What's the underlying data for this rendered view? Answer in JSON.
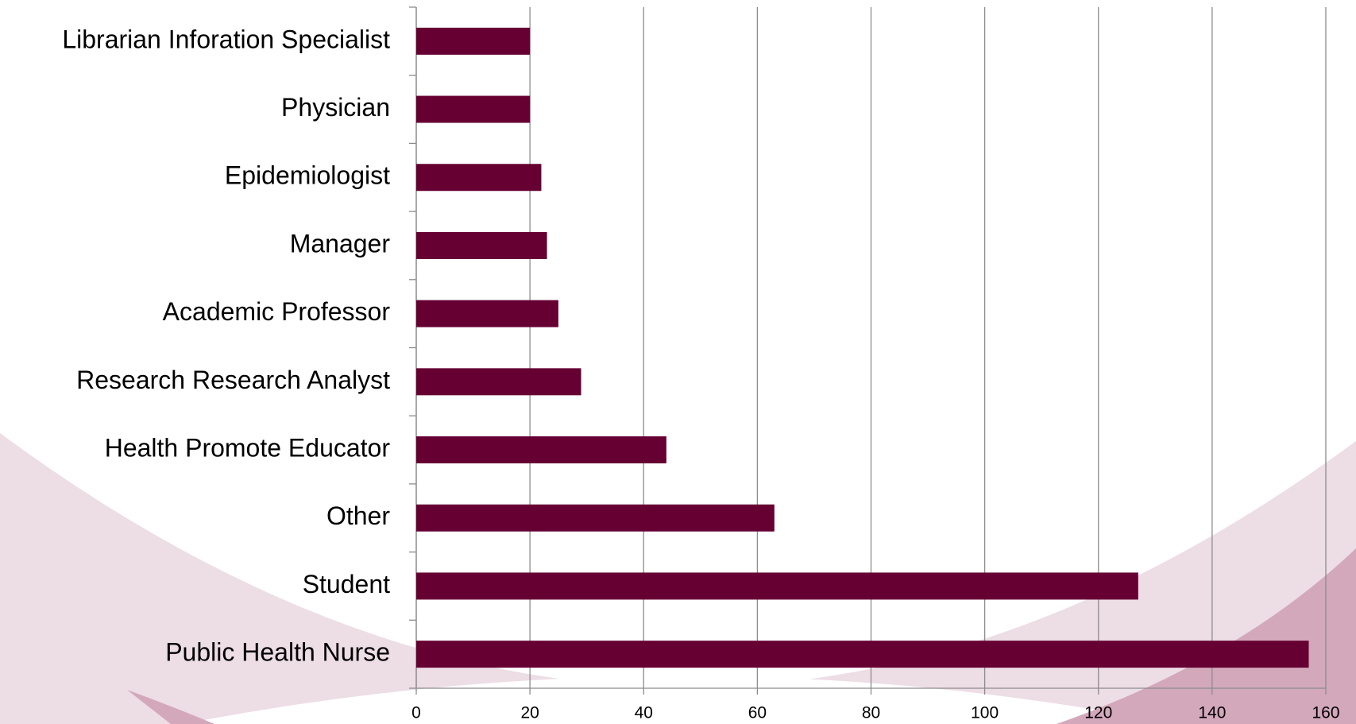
{
  "chart_data": {
    "type": "bar",
    "orientation": "horizontal",
    "categories": [
      "Librarian Inforation Specialist",
      "Physician",
      "Epidemiologist",
      "Manager",
      "Academic Professor",
      "Research Research Analyst",
      "Health Promote Educator",
      "Other",
      "Student",
      "Public Health Nurse"
    ],
    "values": [
      20,
      20,
      22,
      23,
      25,
      29,
      44,
      63,
      127,
      157
    ],
    "color": "#660033",
    "xlim": [
      0,
      160
    ],
    "xticks": [
      0,
      20,
      40,
      60,
      80,
      100,
      120,
      140,
      160
    ],
    "grid": true
  }
}
